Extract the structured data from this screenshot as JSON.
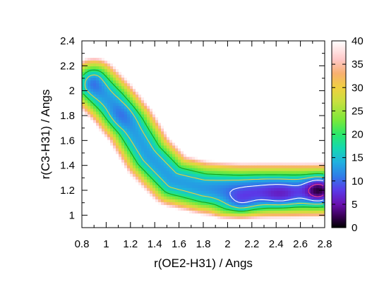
{
  "chart_data": {
    "type": "heatmap",
    "title": "",
    "xlabel": "r(OE2-H31) / Angs",
    "ylabel": "r(C3-H31)  / Angs",
    "xlim": [
      0.8,
      2.8
    ],
    "ylim": [
      0.9,
      2.4
    ],
    "x_ticks": [
      0.8,
      1,
      1.2,
      1.4,
      1.6,
      1.8,
      2,
      2.2,
      2.4,
      2.6,
      2.8
    ],
    "x_tick_labels": [
      "0.8",
      "1",
      "1.2",
      "1.4",
      "1.6",
      "1.8",
      "2",
      "2.2",
      "2.4",
      "2.6",
      "2.8"
    ],
    "y_ticks": [
      1,
      1.2,
      1.4,
      1.6,
      1.8,
      2,
      2.2,
      2.4
    ],
    "y_tick_labels": [
      "1",
      "1.2",
      "1.4",
      "1.6",
      "1.8",
      "2",
      "2.2",
      "2.4"
    ],
    "colorbar": {
      "range": [
        0,
        40
      ],
      "ticks": [
        0,
        5,
        10,
        15,
        20,
        25,
        30,
        35,
        40
      ],
      "tick_labels": [
        "0",
        "5",
        "10",
        "15",
        "20",
        "25",
        "30",
        "35",
        "40"
      ],
      "stops": [
        {
          "v": 0,
          "color": "#000000"
        },
        {
          "v": 2.5,
          "color": "#3a0058"
        },
        {
          "v": 5,
          "color": "#6a10b0"
        },
        {
          "v": 8,
          "color": "#5a3ae8"
        },
        {
          "v": 11,
          "color": "#2f7de8"
        },
        {
          "v": 14,
          "color": "#20b0e0"
        },
        {
          "v": 17,
          "color": "#14d8b0"
        },
        {
          "v": 20,
          "color": "#2ae86a"
        },
        {
          "v": 23,
          "color": "#7ae83a"
        },
        {
          "v": 27,
          "color": "#c8e040"
        },
        {
          "v": 30,
          "color": "#f0d040"
        },
        {
          "v": 33,
          "color": "#f8b070"
        },
        {
          "v": 36,
          "color": "#ffc8c8"
        },
        {
          "v": 40,
          "color": "#ffffff"
        }
      ]
    },
    "energy_landscape": {
      "background_value": 40,
      "base_value": 13,
      "ridge_path": [
        [
          0.9,
          2.05
        ],
        [
          1.05,
          1.9
        ],
        [
          1.2,
          1.72
        ],
        [
          1.35,
          1.48
        ],
        [
          1.55,
          1.28
        ],
        [
          1.8,
          1.22
        ],
        [
          2.1,
          1.2
        ],
        [
          2.5,
          1.2
        ],
        [
          2.8,
          1.2
        ]
      ],
      "ridge_halfwidth": 0.22,
      "basins": [
        {
          "x": 0.9,
          "y": 2.05,
          "depth": 2.5,
          "sx": 0.06,
          "sy": 0.07
        },
        {
          "x": 1.12,
          "y": 1.8,
          "depth": 2.5,
          "sx": 0.08,
          "sy": 0.07
        },
        {
          "x": 2.1,
          "y": 1.05,
          "depth": 7,
          "sx": 0.1,
          "sy": 0.08
        },
        {
          "x": 2.35,
          "y": 1.15,
          "depth": 5,
          "sx": 0.25,
          "sy": 0.12
        },
        {
          "x": 2.75,
          "y": 1.2,
          "depth": 10,
          "sx": 0.08,
          "sy": 0.08
        },
        {
          "x": 2.45,
          "y": 1.15,
          "depth": 3,
          "sx": 0.1,
          "sy": 0.06
        },
        {
          "x": 1.95,
          "y": 1.0,
          "depth": 4,
          "sx": 0.06,
          "sy": 0.05
        }
      ],
      "contour_levels": [
        {
          "value": 5,
          "color": "#e8408a"
        },
        {
          "value": 10,
          "color": "#ffffff"
        },
        {
          "value": 15,
          "color": "#e6d23c"
        },
        {
          "value": 20,
          "color": "#18a018"
        }
      ]
    }
  }
}
